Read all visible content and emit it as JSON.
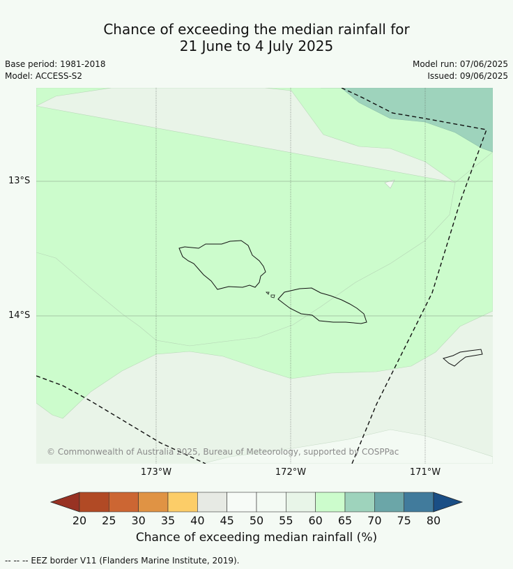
{
  "title_line1": "Chance of exceeding the median rainfall for",
  "title_line2": "21 June to 4 July 2025",
  "base_period": "Base period: 1981-2018",
  "model": "Model: ACCESS-S2",
  "model_run": "Model run: 07/06/2025",
  "issued": "Issued: 09/06/2025",
  "lat_labels": [
    "13°S",
    "14°S"
  ],
  "lon_labels": [
    "173°W",
    "172°W",
    "171°W"
  ],
  "copyright": "© Commonwealth of Australia 2025, Bureau of Meteorology, supported by COSPPac",
  "colorbar": {
    "ticks": [
      "20",
      "25",
      "30",
      "35",
      "40",
      "45",
      "50",
      "55",
      "60",
      "65",
      "70",
      "75",
      "80"
    ],
    "colors": [
      "#b14a25",
      "#cc6633",
      "#e09344",
      "#fccd68",
      "#e7eae4",
      "#f7fbf7",
      "#f3faf3",
      "#e8f5e8",
      "#ccfccc",
      "#9ed3bc",
      "#6ba6a8",
      "#417b9c"
    ],
    "under_color": "#983223",
    "over_color": "#1a4e85",
    "title": "Chance of exceeding median rainfall (%)"
  },
  "footer": "--  --  -- EEZ border V11 (Flanders Marine Institute, 2019)."
}
